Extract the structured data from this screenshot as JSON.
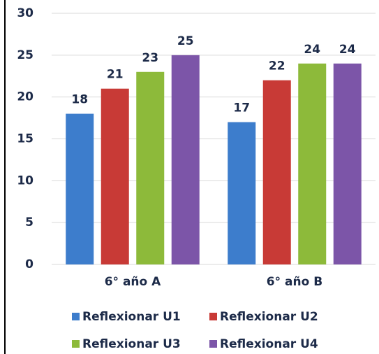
{
  "chart_data": {
    "type": "bar",
    "categories": [
      "6° año A",
      "6° año B"
    ],
    "series": [
      {
        "name": "Reflexionar U1",
        "color": "#3d7dcc",
        "values": [
          18,
          17
        ]
      },
      {
        "name": "Reflexionar U2",
        "color": "#c83a36",
        "values": [
          21,
          22
        ]
      },
      {
        "name": "Reflexionar U3",
        "color": "#8dba3a",
        "values": [
          23,
          24
        ]
      },
      {
        "name": "Reflexionar U4",
        "color": "#7c55a8",
        "values": [
          25,
          24
        ]
      }
    ],
    "ylim": [
      0,
      30
    ],
    "yticks": [
      0,
      5,
      10,
      15,
      20,
      25,
      30
    ],
    "grid": true
  }
}
